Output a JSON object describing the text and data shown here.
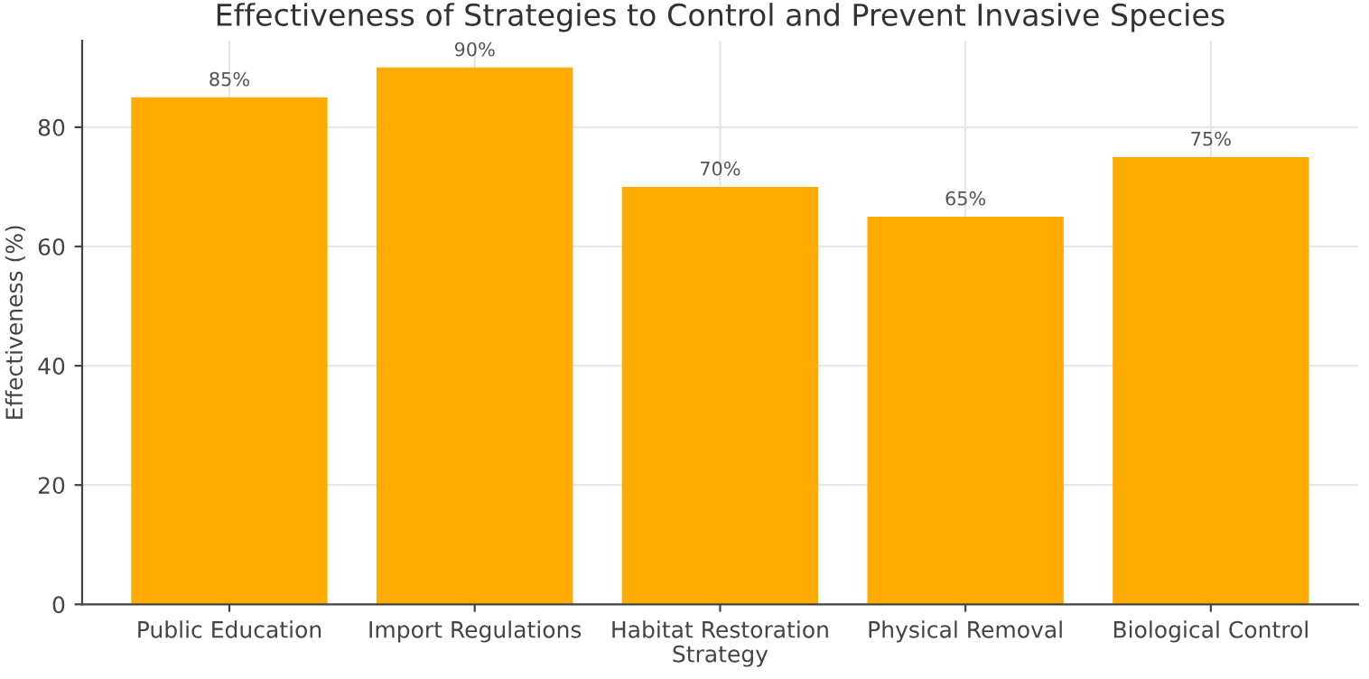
{
  "chart_data": {
    "type": "bar",
    "title": "Effectiveness of Strategies to Control and Prevent Invasive Species",
    "xlabel": "Strategy",
    "ylabel": "Effectiveness (%)",
    "categories": [
      "Public Education",
      "Import Regulations",
      "Habitat Restoration",
      "Physical Removal",
      "Biological Control"
    ],
    "values": [
      85,
      90,
      70,
      65,
      75
    ],
    "color": "#ffab00",
    "value_labels": [
      "85%",
      "90%",
      "70%",
      "65%",
      "75%"
    ],
    "ylim": [
      0,
      94.5
    ],
    "yticks": [
      0,
      20,
      40,
      60,
      80
    ],
    "grid": true
  }
}
